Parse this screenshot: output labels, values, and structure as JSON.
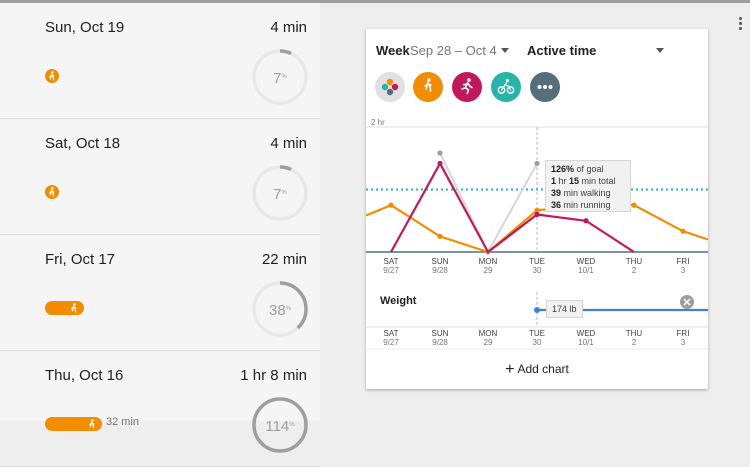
{
  "days": [
    {
      "date": "Sun, Oct 19",
      "duration": "4 min",
      "activity": "walking",
      "bar_label": "",
      "goal_text": "7",
      "goal_pct": 0.07
    },
    {
      "date": "Sat, Oct 18",
      "duration": "4 min",
      "activity": "walking",
      "bar_label": "",
      "goal_text": "7",
      "goal_pct": 0.07
    },
    {
      "date": "Fri, Oct 17",
      "duration": "22 min",
      "activity": "walking",
      "bar_label": "",
      "goal_text": "38",
      "goal_pct": 0.38
    },
    {
      "date": "Thu, Oct 16",
      "duration": "1 hr 8 min",
      "activity": "walking",
      "bar_label": "32 min",
      "goal_text": "114",
      "goal_pct": 1.14
    }
  ],
  "chart_card": {
    "period_label": "Week",
    "date_range": "Sep 28 – Oct 4",
    "metric_label": "Active time",
    "filters": [
      {
        "name": "all-activities-icon",
        "color": "#e0e0e0"
      },
      {
        "name": "walking-icon",
        "color": "#f28c00"
      },
      {
        "name": "running-icon",
        "color": "#c2185b"
      },
      {
        "name": "biking-icon",
        "color": "#26b5a8"
      },
      {
        "name": "more-icon",
        "color": "#546e7a"
      }
    ],
    "add_chart_label": "Add chart",
    "tooltip": {
      "goal_pct": "126%",
      "goal_suffix": " of goal",
      "total_h": "1",
      "total_h_unit": " hr ",
      "total_m": "15",
      "total_m_unit": " min total",
      "walk_min": "39",
      "walk_suffix": " min walking",
      "run_min": "36",
      "run_suffix": " min running"
    }
  },
  "weight": {
    "label": "Weight",
    "value_text": "174 lb",
    "value": 174
  },
  "chart_data": [
    {
      "type": "line",
      "title": "Active time",
      "y_max_label": "2 hr",
      "ylim": [
        0,
        120
      ],
      "goal_line": 60,
      "x_days": [
        "SAT",
        "SUN",
        "MON",
        "TUE",
        "WED",
        "THU",
        "FRI"
      ],
      "x_dates": [
        "9/27",
        "9/28",
        "29",
        "30",
        "10/1",
        "2",
        "3"
      ],
      "series": [
        {
          "key": "total",
          "color": "#d6d6d6",
          "values": [
            null,
            95,
            0,
            85,
            null,
            null,
            null
          ]
        },
        {
          "key": "walking",
          "color": "#f28c00",
          "values": [
            45,
            15,
            0,
            40,
            45,
            45,
            20
          ]
        },
        {
          "key": "running",
          "color": "#c2185b",
          "values": [
            0,
            85,
            0,
            36,
            30,
            0,
            null
          ]
        }
      ],
      "lead_in": {
        "walking": 35
      },
      "lead_out": {
        "walking": 12
      }
    },
    {
      "type": "line",
      "title": "Weight",
      "x_days": [
        "SAT",
        "SUN",
        "MON",
        "TUE",
        "WED",
        "THU",
        "FRI"
      ],
      "x_dates": [
        "9/27",
        "9/28",
        "29",
        "30",
        "10/1",
        "2",
        "3"
      ],
      "series": [
        {
          "key": "weight",
          "color": "#3f7fe0",
          "values": [
            null,
            null,
            null,
            174,
            174,
            174,
            174
          ]
        }
      ]
    }
  ],
  "colors": {
    "walking": "#f28c00",
    "running": "#c2185b",
    "goal": "#1fb7c9",
    "weight": "#3f7fe0"
  }
}
